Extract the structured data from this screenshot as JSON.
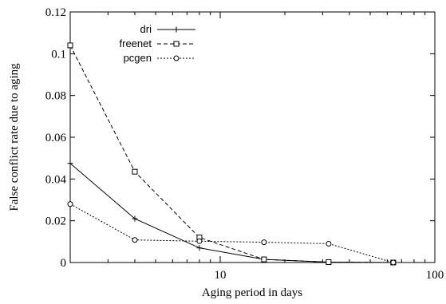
{
  "chart_data": {
    "type": "line",
    "xlabel": "Aging period in days",
    "ylabel": "False conflict rate due to aging",
    "xscale": "log",
    "xlim": [
      2,
      100
    ],
    "ylim": [
      0,
      0.12
    ],
    "x_ticks": [
      10,
      100
    ],
    "x_tick_labels": [
      "10",
      "100"
    ],
    "y_ticks": [
      0,
      0.02,
      0.04,
      0.06,
      0.08,
      0.1,
      0.12
    ],
    "y_tick_labels": [
      "0",
      "0.02",
      "0.04",
      "0.06",
      "0.08",
      "0.1",
      "0.12"
    ],
    "grid": false,
    "legend_position": "top-left",
    "series": [
      {
        "name": "dri",
        "line": "solid",
        "marker": "plus",
        "x": [
          2,
          4,
          8,
          16,
          32,
          64
        ],
        "y": [
          0.0475,
          0.021,
          0.007,
          0.0015,
          0.0002,
          0.0
        ]
      },
      {
        "name": "freenet",
        "line": "dashed",
        "marker": "square",
        "x": [
          2,
          4,
          8,
          16,
          32,
          64
        ],
        "y": [
          0.104,
          0.0435,
          0.012,
          0.0015,
          0.0002,
          0.0
        ]
      },
      {
        "name": "pcgen",
        "line": "dotted",
        "marker": "circle",
        "x": [
          2,
          4,
          8,
          16,
          32,
          64
        ],
        "y": [
          0.028,
          0.0108,
          0.0102,
          0.0097,
          0.009,
          0.0
        ]
      }
    ]
  }
}
